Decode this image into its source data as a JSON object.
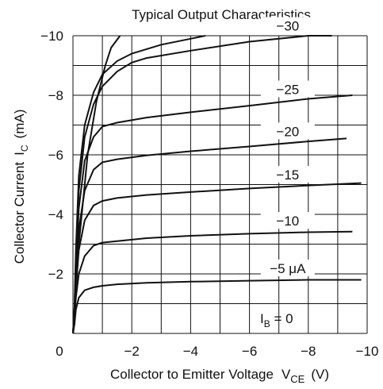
{
  "chart_data": {
    "type": "line",
    "title": "Typical Output Characteristics",
    "xlabel": "Collector to Emitter Voltage",
    "xlabel_symbol": "V",
    "xlabel_subscript": "CE",
    "xlabel_unit": "(V)",
    "ylabel": "Collector Current",
    "ylabel_symbol": "I",
    "ylabel_subscript": "C",
    "ylabel_unit": "(mA)",
    "xlim": [
      0,
      -10
    ],
    "ylim": [
      0,
      -10
    ],
    "grid": true,
    "x_ticks": [
      "0",
      "−2",
      "−4",
      "−6",
      "−8",
      "−10"
    ],
    "y_ticks": [
      "−2",
      "−4",
      "−6",
      "−8",
      "−10"
    ],
    "baseline_label": {
      "symbol": "I",
      "subscript": "B",
      "text": " = 0"
    },
    "series": [
      {
        "name": "−5 μA",
        "x": [
          -0.05,
          -0.1,
          -0.2,
          -0.4,
          -0.7,
          -1.0,
          -1.5,
          -2.5,
          -4,
          -6,
          -8,
          -9.8
        ],
        "values": [
          -0.3,
          -0.8,
          -1.2,
          -1.45,
          -1.55,
          -1.6,
          -1.65,
          -1.7,
          -1.74,
          -1.77,
          -1.8,
          -1.8
        ]
      },
      {
        "name": "−10",
        "x": [
          -0.05,
          -0.1,
          -0.2,
          -0.4,
          -0.7,
          -1.0,
          -1.5,
          -2.5,
          -4,
          -6,
          -8,
          -9.5
        ],
        "values": [
          -0.4,
          -1.2,
          -2.0,
          -2.6,
          -2.95,
          -3.05,
          -3.1,
          -3.2,
          -3.28,
          -3.35,
          -3.4,
          -3.42
        ]
      },
      {
        "name": "−15",
        "x": [
          -0.05,
          -0.1,
          -0.2,
          -0.4,
          -0.7,
          -1.0,
          -1.5,
          -2.5,
          -4,
          -6,
          -8,
          -9.8
        ],
        "values": [
          -0.5,
          -1.5,
          -2.8,
          -3.8,
          -4.3,
          -4.45,
          -4.55,
          -4.65,
          -4.75,
          -4.87,
          -4.97,
          -5.05
        ]
      },
      {
        "name": "−20",
        "x": [
          -0.05,
          -0.1,
          -0.2,
          -0.4,
          -0.7,
          -1.0,
          -1.5,
          -2.5,
          -4,
          -6,
          -8,
          -9.3
        ],
        "values": [
          -0.6,
          -1.9,
          -3.5,
          -4.8,
          -5.5,
          -5.75,
          -5.85,
          -5.98,
          -6.12,
          -6.28,
          -6.45,
          -6.55
        ]
      },
      {
        "name": "−25",
        "x": [
          -0.05,
          -0.1,
          -0.2,
          -0.4,
          -0.7,
          -1.0,
          -1.5,
          -2.5,
          -4,
          -6,
          -8,
          -9.5
        ],
        "values": [
          -0.7,
          -2.2,
          -4.2,
          -5.8,
          -6.6,
          -6.95,
          -7.08,
          -7.25,
          -7.43,
          -7.65,
          -7.88,
          -8.0
        ]
      },
      {
        "name": "−30",
        "x": [
          -0.05,
          -0.1,
          -0.2,
          -0.4,
          -0.7,
          -1.0,
          -1.5,
          -2.0,
          -2.5,
          -4,
          -6,
          -8,
          -8.8
        ],
        "values": [
          -0.8,
          -2.5,
          -4.8,
          -6.6,
          -7.7,
          -8.3,
          -8.8,
          -9.1,
          -9.25,
          -9.5,
          -9.8,
          -10.0,
          -10.0
        ]
      },
      {
        "name": "",
        "x": [
          -0.05,
          -0.1,
          -0.2,
          -0.4,
          -0.7,
          -1.0,
          -1.5,
          -2.0,
          -3,
          -4,
          -4.5
        ],
        "values": [
          -0.9,
          -2.8,
          -5.3,
          -7.0,
          -8.1,
          -8.7,
          -9.15,
          -9.4,
          -9.7,
          -9.9,
          -10.0
        ]
      },
      {
        "name": "",
        "x": [
          -0.05,
          -0.2,
          -0.5,
          -0.8,
          -1.1,
          -1.3,
          -1.6
        ],
        "values": [
          -0.6,
          -3.0,
          -6.0,
          -7.8,
          -9.0,
          -9.6,
          -10.0
        ]
      }
    ]
  }
}
